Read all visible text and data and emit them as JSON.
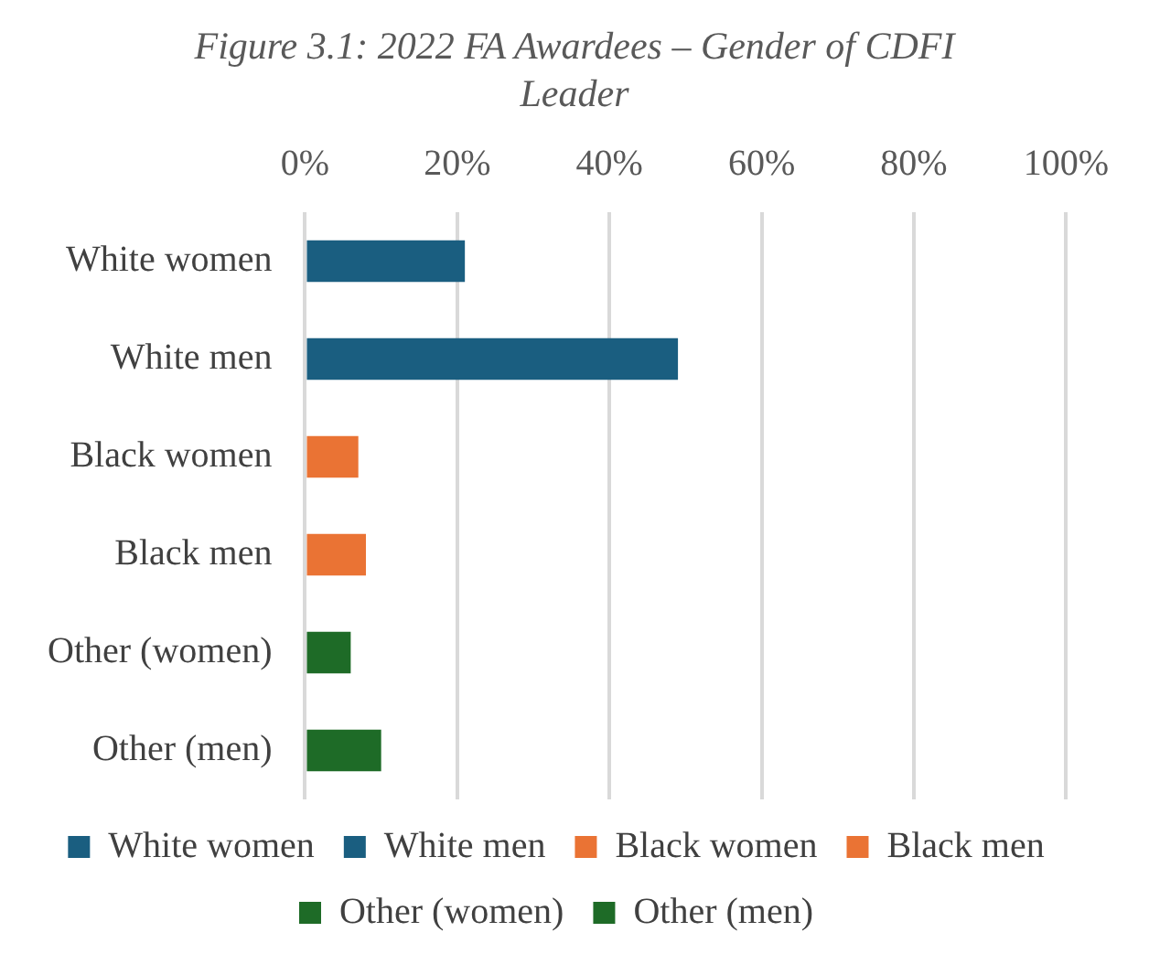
{
  "chart_data": {
    "type": "bar",
    "orientation": "horizontal",
    "title": "Figure 3.1: 2022 FA Awardees – Gender of CDFI Leader",
    "categories": [
      "White women",
      "White men",
      "Black women",
      "Black men",
      "Other (women)",
      "Other (men)"
    ],
    "series": [
      {
        "name": "White women",
        "color": "#1a5e80",
        "values": [
          21,
          null,
          null,
          null,
          null,
          null
        ]
      },
      {
        "name": "White men",
        "color": "#1a5e80",
        "values": [
          null,
          49,
          null,
          null,
          null,
          null
        ]
      },
      {
        "name": "Black women",
        "color": "#ea7334",
        "values": [
          null,
          null,
          7,
          null,
          null,
          null
        ]
      },
      {
        "name": "Black men",
        "color": "#ea7334",
        "values": [
          null,
          null,
          null,
          8,
          null,
          null
        ]
      },
      {
        "name": "Other (women)",
        "color": "#1e6b27",
        "values": [
          null,
          null,
          null,
          null,
          6,
          null
        ]
      },
      {
        "name": "Other (men)",
        "color": "#1e6b27",
        "values": [
          null,
          null,
          null,
          null,
          null,
          10
        ]
      }
    ],
    "xlim": [
      0,
      100
    ],
    "xticks": [
      {
        "value": 0,
        "label": "0%"
      },
      {
        "value": 20,
        "label": "20%"
      },
      {
        "value": 40,
        "label": "40%"
      },
      {
        "value": 60,
        "label": "60%"
      },
      {
        "value": 80,
        "label": "80%"
      },
      {
        "value": 100,
        "label": "100%"
      }
    ],
    "grid": "x",
    "legend": "bottom"
  }
}
